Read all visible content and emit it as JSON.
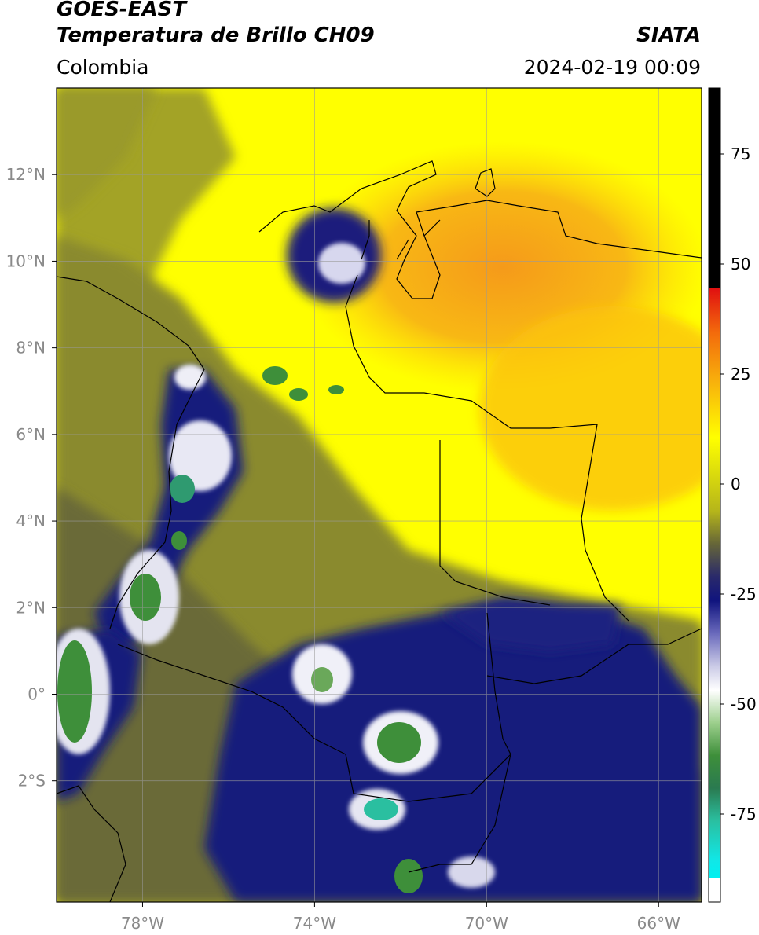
{
  "header": {
    "satellite": "GOES-EAST",
    "product": "Temperatura de Brillo CH09",
    "region": "Colombia",
    "source": "SIATA",
    "timestamp": "2024-02-19 00:09"
  },
  "map": {
    "lat_range": [
      -4.8,
      14.0
    ],
    "lon_range": [
      -80.0,
      -65.0
    ],
    "lat_ticks": [
      {
        "value": 12,
        "label": "12°N"
      },
      {
        "value": 10,
        "label": "10°N"
      },
      {
        "value": 8,
        "label": "8°N"
      },
      {
        "value": 6,
        "label": "6°N"
      },
      {
        "value": 4,
        "label": "4°N"
      },
      {
        "value": 2,
        "label": "2°N"
      },
      {
        "value": 0,
        "label": "0°"
      },
      {
        "value": -2,
        "label": "2°S"
      }
    ],
    "lon_ticks": [
      {
        "value": -78,
        "label": "78°W"
      },
      {
        "value": -74,
        "label": "74°W"
      },
      {
        "value": -70,
        "label": "70°W"
      },
      {
        "value": -66,
        "label": "66°W"
      }
    ],
    "colors": {
      "warm_orange": "#f5a71c",
      "warm_yellow": "#ffff00",
      "olive": "#8f8f22",
      "dark_olive": "#5a5a30",
      "navy": "#141a7a",
      "white": "#ffffff",
      "green": "#3e8f3a",
      "teal": "#2abfa0"
    }
  },
  "colorbar": {
    "range": [
      -95,
      90
    ],
    "ticks": [
      {
        "value": 75,
        "label": "75"
      },
      {
        "value": 50,
        "label": "50"
      },
      {
        "value": 25,
        "label": "25"
      },
      {
        "value": 0,
        "label": "0"
      },
      {
        "value": -25,
        "label": "-25"
      },
      {
        "value": -50,
        "label": "-50"
      },
      {
        "value": -75,
        "label": "-75"
      }
    ]
  }
}
